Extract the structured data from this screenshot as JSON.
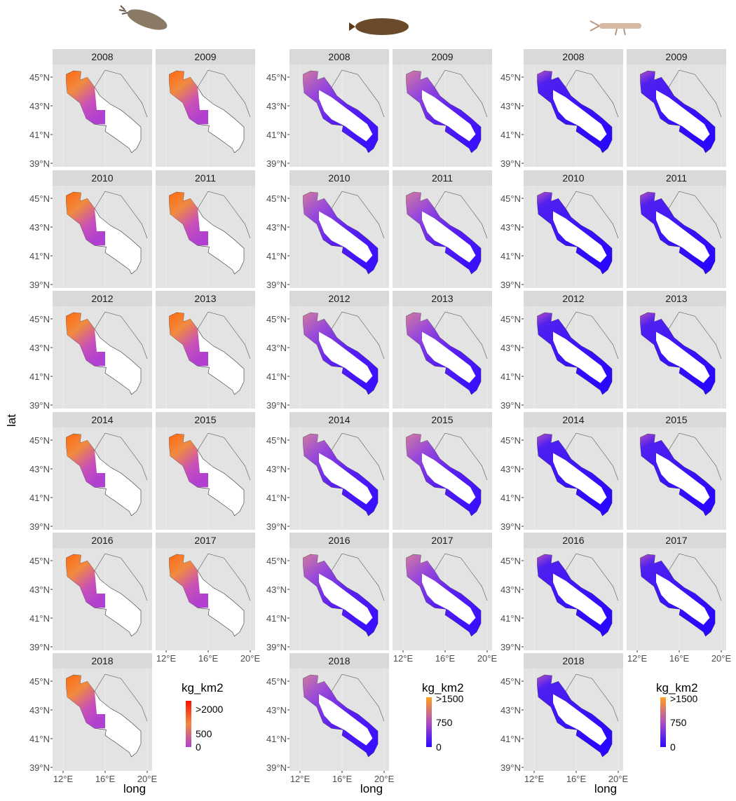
{
  "y_axis_title": "lat",
  "x_axis_title": "long",
  "y_tick_labels": [
    "45°N",
    "43°N",
    "41°N",
    "39°N"
  ],
  "x_tick_labels": [
    "12°E",
    "16°E",
    "20°E"
  ],
  "years": [
    "2008",
    "2009",
    "2010",
    "2011",
    "2012",
    "2013",
    "2014",
    "2015",
    "2016",
    "2017",
    "2018"
  ],
  "legends": [
    {
      "title": "kg_km2",
      "labels": [
        ">2000",
        "500",
        "0"
      ]
    },
    {
      "title": "kg_km2",
      "labels": [
        ">1500",
        "750",
        "0"
      ]
    },
    {
      "title": "kg_km2",
      "labels": [
        ">1500",
        "750",
        "0"
      ]
    }
  ]
}
